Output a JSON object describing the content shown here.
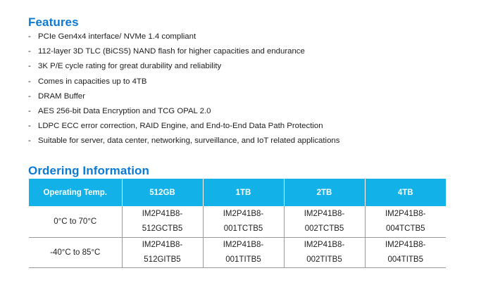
{
  "features": {
    "title": "Features",
    "items": [
      "PCIe Gen4x4 interface/ NVMe 1.4 compliant",
      "112-layer 3D TLC (BiCS5) NAND flash for higher capacities and endurance",
      "3K P/E cycle rating for great durability and reliability",
      "Comes in capacities up to 4TB",
      "DRAM Buffer",
      "AES 256-bit Data Encryption and TCG OPAL 2.0",
      "LDPC ECC error correction, RAID Engine, and End-to-End Data Path Protection",
      "Suitable for server, data center, networking, surveillance, and IoT related applications"
    ],
    "bullet": "-"
  },
  "ordering": {
    "title": "Ordering Information",
    "headers": [
      "Operating Temp.",
      "512GB",
      "1TB",
      "2TB",
      "4TB"
    ],
    "rows": [
      {
        "temp": "0°C to 70°C",
        "parts": [
          [
            "IM2P41B8-",
            "512GCTB5"
          ],
          [
            "IM2P41B8-",
            "001TCTB5"
          ],
          [
            "IM2P41B8-",
            "002TCTB5"
          ],
          [
            "IM2P41B8-",
            "004TCTB5"
          ]
        ]
      },
      {
        "temp": "-40°C to 85°C",
        "parts": [
          [
            "IM2P41B8-",
            "512GITB5"
          ],
          [
            "IM2P41B8-",
            "001TITB5"
          ],
          [
            "IM2P41B8-",
            "002TITB5"
          ],
          [
            "IM2P41B8-",
            "004TITB5"
          ]
        ]
      }
    ],
    "header_color": "#12b1e8",
    "title_color": "#0b79d6"
  }
}
